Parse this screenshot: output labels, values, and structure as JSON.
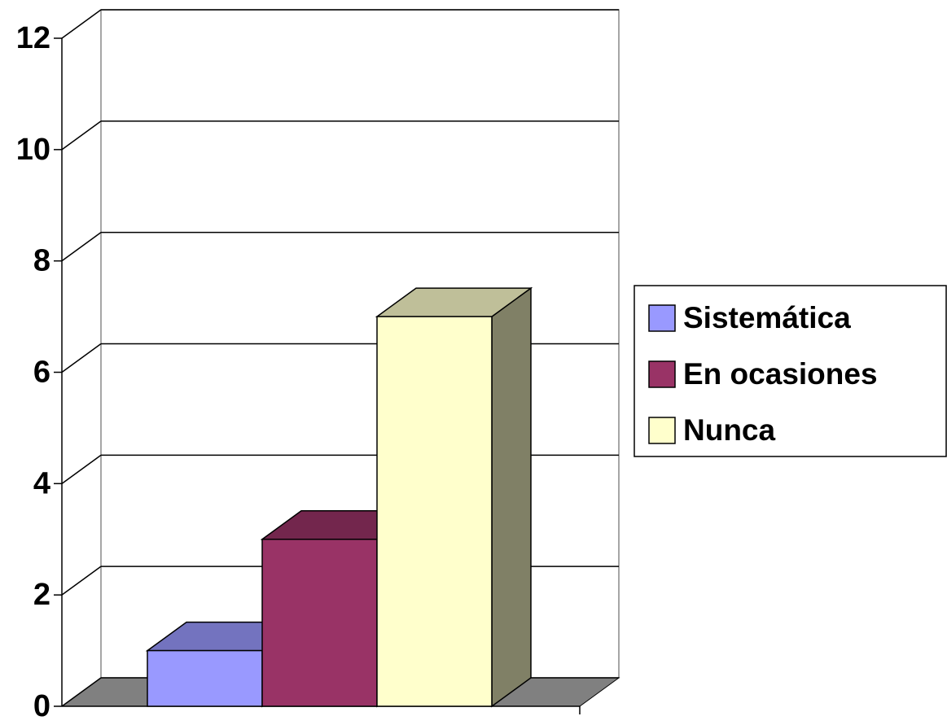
{
  "chart_data": {
    "type": "bar3d",
    "series": [
      {
        "name": "Sistemática",
        "color": "#9999ff",
        "values": [
          1
        ]
      },
      {
        "name": "En ocasiones",
        "color": "#993366",
        "values": [
          3
        ]
      },
      {
        "name": "Nunca",
        "color": "#ffffcc",
        "values": [
          7
        ]
      }
    ],
    "ylim": [
      0,
      12
    ],
    "yticks": [
      0,
      2,
      4,
      6,
      8,
      10,
      12
    ],
    "grid": true,
    "legend": "right"
  }
}
